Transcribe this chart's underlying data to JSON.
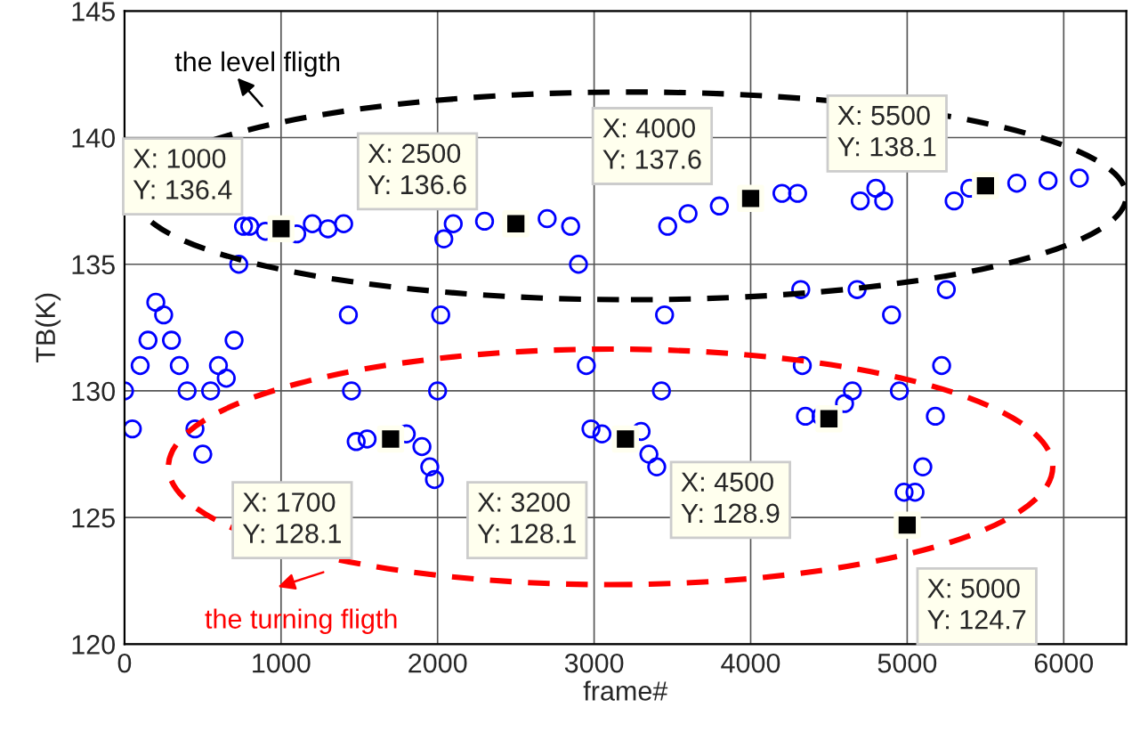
{
  "chart_data": {
    "type": "scatter",
    "xlabel": "frame#",
    "ylabel": "TB(K)",
    "xlim": [
      0,
      6400
    ],
    "ylim": [
      120,
      145
    ],
    "xticks": [
      0,
      1000,
      2000,
      3000,
      4000,
      5000,
      6000
    ],
    "yticks": [
      120,
      125,
      130,
      135,
      140,
      145
    ],
    "grid": true,
    "marker": "circle",
    "series": [
      {
        "color": "#0000ff",
        "x": [
          0,
          50,
          100,
          150,
          200,
          250,
          300,
          350,
          400,
          450,
          500,
          550,
          600,
          650,
          700,
          730,
          760,
          800,
          900,
          1100,
          1200,
          1300,
          1400,
          1430,
          1450,
          1480,
          1550,
          1800,
          1900,
          1950,
          1980,
          2000,
          2020,
          2040,
          2100,
          2300,
          2700,
          2850,
          2900,
          2950,
          2980,
          3050,
          3300,
          3350,
          3400,
          3430,
          3450,
          3470,
          3600,
          3800,
          4200,
          4300,
          4320,
          4330,
          4350,
          4450,
          4600,
          4650,
          4680,
          4700,
          4800,
          4850,
          4900,
          4950,
          4980,
          5050,
          5100,
          5180,
          5220,
          5250,
          5300,
          5400,
          5700,
          5900,
          6100
        ],
        "values": [
          130,
          128.5,
          131,
          132,
          133.5,
          133,
          132,
          131,
          130,
          128.5,
          127.5,
          130,
          131,
          130.5,
          132,
          135,
          136.5,
          136.5,
          136.3,
          136.2,
          136.6,
          136.4,
          136.6,
          133,
          130,
          128,
          128.1,
          128.3,
          127.8,
          127,
          126.5,
          130,
          133,
          136,
          136.6,
          136.7,
          136.8,
          136.5,
          135,
          131,
          128.5,
          128.3,
          128.4,
          127.5,
          127,
          130,
          133,
          136.5,
          137,
          137.3,
          137.8,
          137.8,
          134,
          131,
          129,
          129,
          129.5,
          130,
          134,
          137.5,
          138,
          137.5,
          133,
          130,
          126,
          126,
          127,
          129,
          131,
          134,
          137.5,
          138,
          138.2,
          138.3,
          138.4
        ]
      },
      {
        "color": "#000000",
        "marker": "square",
        "x": [
          1000,
          1700,
          2500,
          3200,
          4000,
          4500,
          5000,
          5500
        ],
        "values": [
          136.4,
          128.1,
          136.6,
          128.1,
          137.6,
          128.9,
          124.7,
          138.1
        ]
      }
    ],
    "annotations": [
      {
        "text": "X: 1000\nY: 136.4",
        "x": 1000,
        "y": 136.4
      },
      {
        "text": "X: 1700\nY: 128.1",
        "x": 1700,
        "y": 128.1
      },
      {
        "text": "X: 2500\nY: 136.6",
        "x": 2500,
        "y": 136.6
      },
      {
        "text": "X: 3200\nY: 128.1",
        "x": 3200,
        "y": 128.1
      },
      {
        "text": "X: 4000\nY: 137.6",
        "x": 4000,
        "y": 137.6
      },
      {
        "text": "X: 4500\nY: 128.9",
        "x": 4500,
        "y": 128.9
      },
      {
        "text": "X: 5000\nY: 124.7",
        "x": 5000,
        "y": 124.7
      },
      {
        "text": "X: 5500\nY: 138.1",
        "x": 5500,
        "y": 138.1
      },
      "the level fligth",
      "the turning fligth"
    ]
  }
}
